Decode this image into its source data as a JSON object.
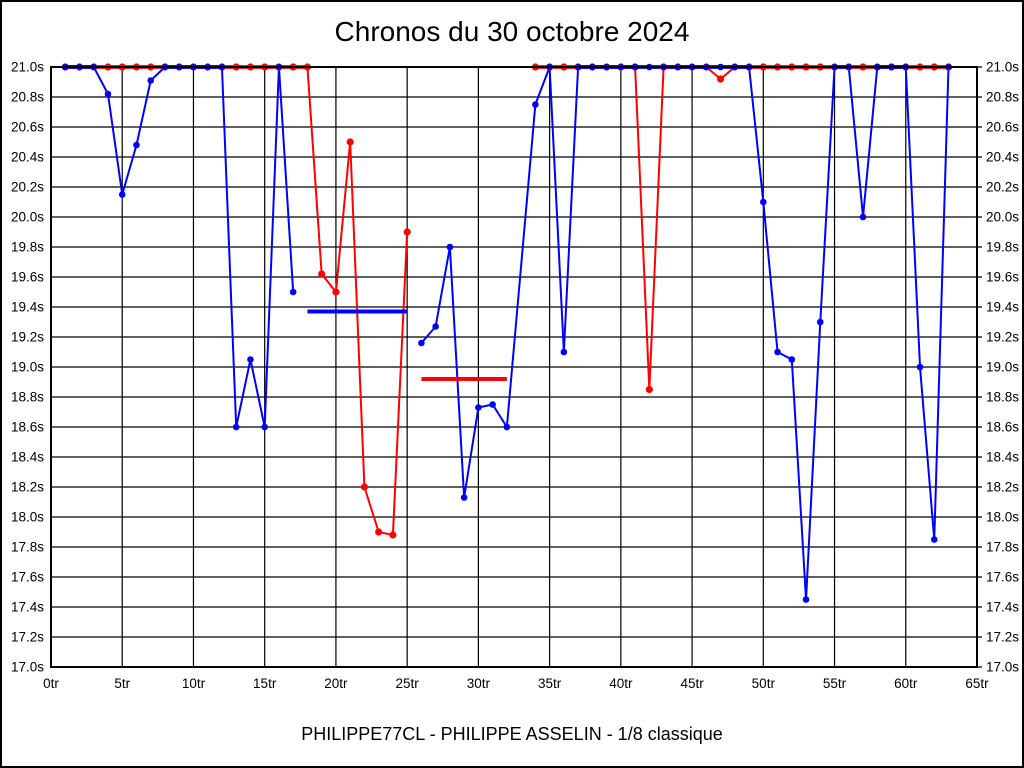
{
  "title": "Chronos du 30 octobre 2024",
  "caption": "PHILIPPE77CL - PHILIPPE ASSELIN - 1/8 classique",
  "colors": {
    "blue_series": "#0000ff",
    "red_series": "#ff0000",
    "grid": "#000000",
    "text": "#000000",
    "background": "#ffffff"
  },
  "chart_data": {
    "type": "line",
    "title": "Chronos du 30 octobre 2024",
    "x_unit": "tr",
    "y_unit": "s",
    "xlim": [
      0,
      65
    ],
    "ylim": [
      17.0,
      21.0
    ],
    "grid": true,
    "clamp_max": 21.0,
    "x_tick_step": 5,
    "y_tick_step": 0.2,
    "x_tick_labels": [
      "0tr",
      "5tr",
      "10tr",
      "15tr",
      "20tr",
      "25tr",
      "30tr",
      "35tr",
      "40tr",
      "45tr",
      "50tr",
      "55tr",
      "60tr",
      "65tr"
    ],
    "y_tick_labels": [
      "21.0s",
      "20.8s",
      "20.6s",
      "20.4s",
      "20.2s",
      "20.0s",
      "19.8s",
      "19.6s",
      "19.4s",
      "19.2s",
      "19.0s",
      "18.8s",
      "18.6s",
      "18.4s",
      "18.2s",
      "18.0s",
      "17.8s",
      "17.6s",
      "17.4s",
      "17.2s",
      "17.0s"
    ],
    "y_axis_sides": [
      "left",
      "right"
    ],
    "series": [
      {
        "name": "red",
        "color": "#ff0000",
        "segments": [
          [
            [
              1,
              21.0
            ],
            [
              2,
              21.0
            ],
            [
              3,
              21.0
            ],
            [
              4,
              21.0
            ],
            [
              5,
              21.0
            ],
            [
              6,
              21.0
            ],
            [
              7,
              21.0
            ],
            [
              8,
              21.0
            ],
            [
              9,
              21.0
            ],
            [
              10,
              21.0
            ],
            [
              11,
              21.0
            ],
            [
              12,
              21.0
            ],
            [
              13,
              21.0
            ],
            [
              14,
              21.0
            ],
            [
              15,
              21.0
            ],
            [
              16,
              21.0
            ],
            [
              17,
              21.0
            ],
            [
              18,
              21.0
            ],
            [
              19,
              19.62
            ],
            [
              20,
              19.5
            ],
            [
              21,
              20.5
            ],
            [
              22,
              18.2
            ],
            [
              23,
              17.9
            ],
            [
              24,
              17.88
            ],
            [
              25,
              19.9
            ]
          ],
          [
            [
              34,
              21.0
            ],
            [
              35,
              21.0
            ],
            [
              36,
              21.0
            ],
            [
              37,
              21.0
            ],
            [
              38,
              21.0
            ],
            [
              39,
              21.0
            ],
            [
              40,
              21.0
            ],
            [
              41,
              21.0
            ],
            [
              42,
              18.85
            ],
            [
              43,
              21.0
            ],
            [
              44,
              21.0
            ],
            [
              45,
              21.0
            ],
            [
              46,
              21.0
            ],
            [
              47,
              20.92
            ],
            [
              48,
              21.0
            ],
            [
              49,
              21.0
            ],
            [
              50,
              21.0
            ],
            [
              51,
              21.0
            ],
            [
              52,
              21.0
            ],
            [
              53,
              21.0
            ],
            [
              54,
              21.0
            ],
            [
              55,
              21.0
            ],
            [
              56,
              21.0
            ],
            [
              57,
              21.0
            ],
            [
              58,
              21.0
            ],
            [
              59,
              21.0
            ],
            [
              60,
              21.0
            ],
            [
              61,
              21.0
            ],
            [
              62,
              21.0
            ],
            [
              63,
              21.0
            ]
          ]
        ]
      },
      {
        "name": "blue",
        "color": "#0000ff",
        "segments": [
          [
            [
              1,
              21.0
            ],
            [
              2,
              21.0
            ],
            [
              3,
              21.0
            ],
            [
              4,
              20.82
            ],
            [
              5,
              20.15
            ],
            [
              6,
              20.48
            ],
            [
              7,
              20.91
            ],
            [
              8,
              21.0
            ],
            [
              9,
              21.0
            ],
            [
              10,
              21.0
            ],
            [
              11,
              21.0
            ],
            [
              12,
              21.0
            ],
            [
              13,
              18.6
            ],
            [
              14,
              19.05
            ],
            [
              15,
              18.6
            ],
            [
              16,
              21.0
            ],
            [
              17,
              19.5
            ]
          ],
          [
            [
              26,
              19.16
            ],
            [
              27,
              19.27
            ],
            [
              28,
              19.8
            ],
            [
              29,
              18.13
            ],
            [
              30,
              18.73
            ],
            [
              31,
              18.75
            ],
            [
              32,
              18.6
            ],
            [
              34,
              20.75
            ],
            [
              35,
              21.0
            ],
            [
              36,
              19.1
            ],
            [
              37,
              21.0
            ],
            [
              38,
              21.0
            ],
            [
              39,
              21.0
            ],
            [
              40,
              21.0
            ],
            [
              41,
              21.0
            ],
            [
              42,
              21.0
            ],
            [
              43,
              21.0
            ],
            [
              44,
              21.0
            ],
            [
              45,
              21.0
            ],
            [
              46,
              21.0
            ],
            [
              47,
              21.0
            ],
            [
              48,
              21.0
            ],
            [
              49,
              21.0
            ],
            [
              50,
              20.1
            ],
            [
              51,
              19.1
            ],
            [
              52,
              19.05
            ],
            [
              53,
              17.45
            ],
            [
              54,
              19.3
            ],
            [
              55,
              21.0
            ],
            [
              56,
              21.0
            ],
            [
              57,
              20.0
            ],
            [
              58,
              21.0
            ],
            [
              59,
              21.0
            ],
            [
              60,
              21.0
            ],
            [
              61,
              19.0
            ],
            [
              62,
              17.85
            ],
            [
              63,
              21.0
            ]
          ]
        ]
      }
    ],
    "average_lines": [
      {
        "series": "blue",
        "color": "#0000ff",
        "value": 19.37,
        "from_lap": 18,
        "to_lap": 25
      },
      {
        "series": "red",
        "color": "#ff0000",
        "value": 18.92,
        "from_lap": 26,
        "to_lap": 32
      }
    ]
  }
}
